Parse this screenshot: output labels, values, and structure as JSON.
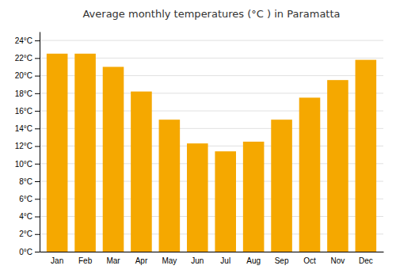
{
  "chart_data": {
    "type": "bar",
    "title": "Average monthly temperatures (°C ) in Paramatta",
    "categories": [
      "Jan",
      "Feb",
      "Mar",
      "Apr",
      "May",
      "Jun",
      "Jul",
      "Aug",
      "Sep",
      "Oct",
      "Nov",
      "Dec"
    ],
    "values": [
      22.5,
      22.5,
      21.0,
      18.2,
      15.0,
      12.3,
      11.4,
      12.5,
      15.0,
      17.5,
      19.5,
      21.8
    ],
    "color": "#F5A800",
    "ylim": [
      0,
      25
    ],
    "yticks": [
      {
        "value": 0,
        "label": "0°C"
      },
      {
        "value": 2,
        "label": "2°C"
      },
      {
        "value": 4,
        "label": "4°C"
      },
      {
        "value": 6,
        "label": "6°C"
      },
      {
        "value": 8,
        "label": "8°C"
      },
      {
        "value": 10,
        "label": "10°C"
      },
      {
        "value": 12,
        "label": "12°C"
      },
      {
        "value": 14,
        "label": "14°C"
      },
      {
        "value": 16,
        "label": "16°C"
      },
      {
        "value": 18,
        "label": "18°C"
      },
      {
        "value": 20,
        "label": "20°C"
      },
      {
        "value": 22,
        "label": "22°C"
      },
      {
        "value": 24,
        "label": "24°C"
      }
    ],
    "grid": true
  }
}
